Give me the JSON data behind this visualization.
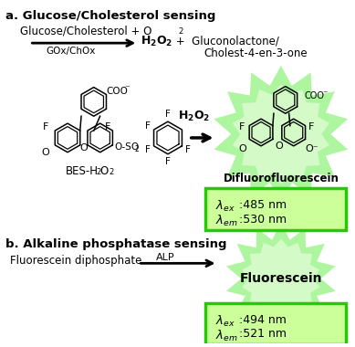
{
  "title_a": "a. Glucose/Cholesterol sensing",
  "title_b": "b. Alkaline phosphatase sensing",
  "product_a": "Difluorofluorescein",
  "product_b": "Fluorescein",
  "lambda_ex_a_val": ":485 nm",
  "lambda_em_a_val": ":530 nm",
  "lambda_ex_b_val": ":494 nm",
  "lambda_em_b_val": ":521 nm",
  "bg_color": "#ffffff",
  "green_burst_outer": "#aef5a0",
  "green_burst_inner": "#d4fac8",
  "green_box_bg": "#ccff99",
  "green_box_border": "#22cc00",
  "text_color": "#000000"
}
